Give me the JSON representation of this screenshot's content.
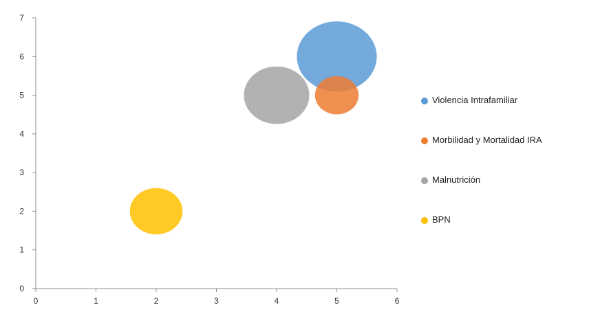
{
  "chart_data": {
    "type": "bubble",
    "xlim": [
      0,
      6
    ],
    "ylim": [
      0,
      7
    ],
    "x_ticks": [
      "0",
      "1",
      "2",
      "3",
      "4",
      "5",
      "6"
    ],
    "y_ticks": [
      "0",
      "1",
      "2",
      "3",
      "4",
      "5",
      "6",
      "7"
    ],
    "grid": false,
    "legend_position": "right",
    "series": [
      {
        "name": "Violencia Intrafamiliar",
        "x": 5,
        "y": 6,
        "size": 4.4,
        "color": "#5b9bd5"
      },
      {
        "name": "Morbilidad y Mortalidad IRA",
        "x": 5,
        "y": 5,
        "size": 2.4,
        "color": "#ed7d31"
      },
      {
        "name": "Malnutrición",
        "x": 4,
        "y": 5,
        "size": 3.6,
        "color": "#a5a5a5"
      },
      {
        "name": "BPN",
        "x": 2,
        "y": 2,
        "size": 2.9,
        "color": "#ffc000"
      }
    ]
  }
}
